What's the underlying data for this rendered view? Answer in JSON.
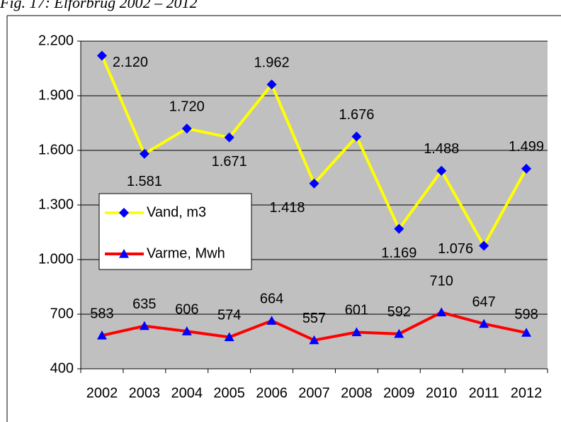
{
  "chart_data": {
    "type": "line",
    "title": "Fig. 17: Elforbrug 2002 – 2012",
    "categories": [
      "2002",
      "2003",
      "2004",
      "2005",
      "2006",
      "2007",
      "2008",
      "2009",
      "2010",
      "2011",
      "2012"
    ],
    "series": [
      {
        "name": "Vand, m3",
        "color": "#ffff00",
        "marker_color": "#0000ff",
        "marker": "diamond",
        "values": [
          2120,
          1581,
          1720,
          1671,
          1962,
          1418,
          1676,
          1169,
          1488,
          1076,
          1499
        ],
        "value_labels": [
          "2.120",
          "1.581",
          "1.720",
          "1.671",
          "1.962",
          "1.418",
          "1.676",
          "1.169",
          "1.488",
          "1.076",
          "1.499"
        ]
      },
      {
        "name": "Varme, Mwh",
        "color": "#ff0000",
        "marker_color": "#0000ff",
        "marker": "triangle",
        "values": [
          583,
          635,
          606,
          574,
          664,
          557,
          601,
          592,
          710,
          647,
          598
        ]
      }
    ],
    "ylim": [
      400,
      2200
    ],
    "yticks": [
      400,
      700,
      {
        "value": 1000,
        "label": "1.000"
      },
      {
        "value": 1300,
        "label": "1.300"
      },
      {
        "value": 1600,
        "label": "1.600"
      },
      {
        "value": 1900,
        "label": "1.900"
      },
      {
        "value": 2200,
        "label": "2.200"
      }
    ],
    "grid": true,
    "legend": "left",
    "plot_background": "#c0c0c0"
  }
}
